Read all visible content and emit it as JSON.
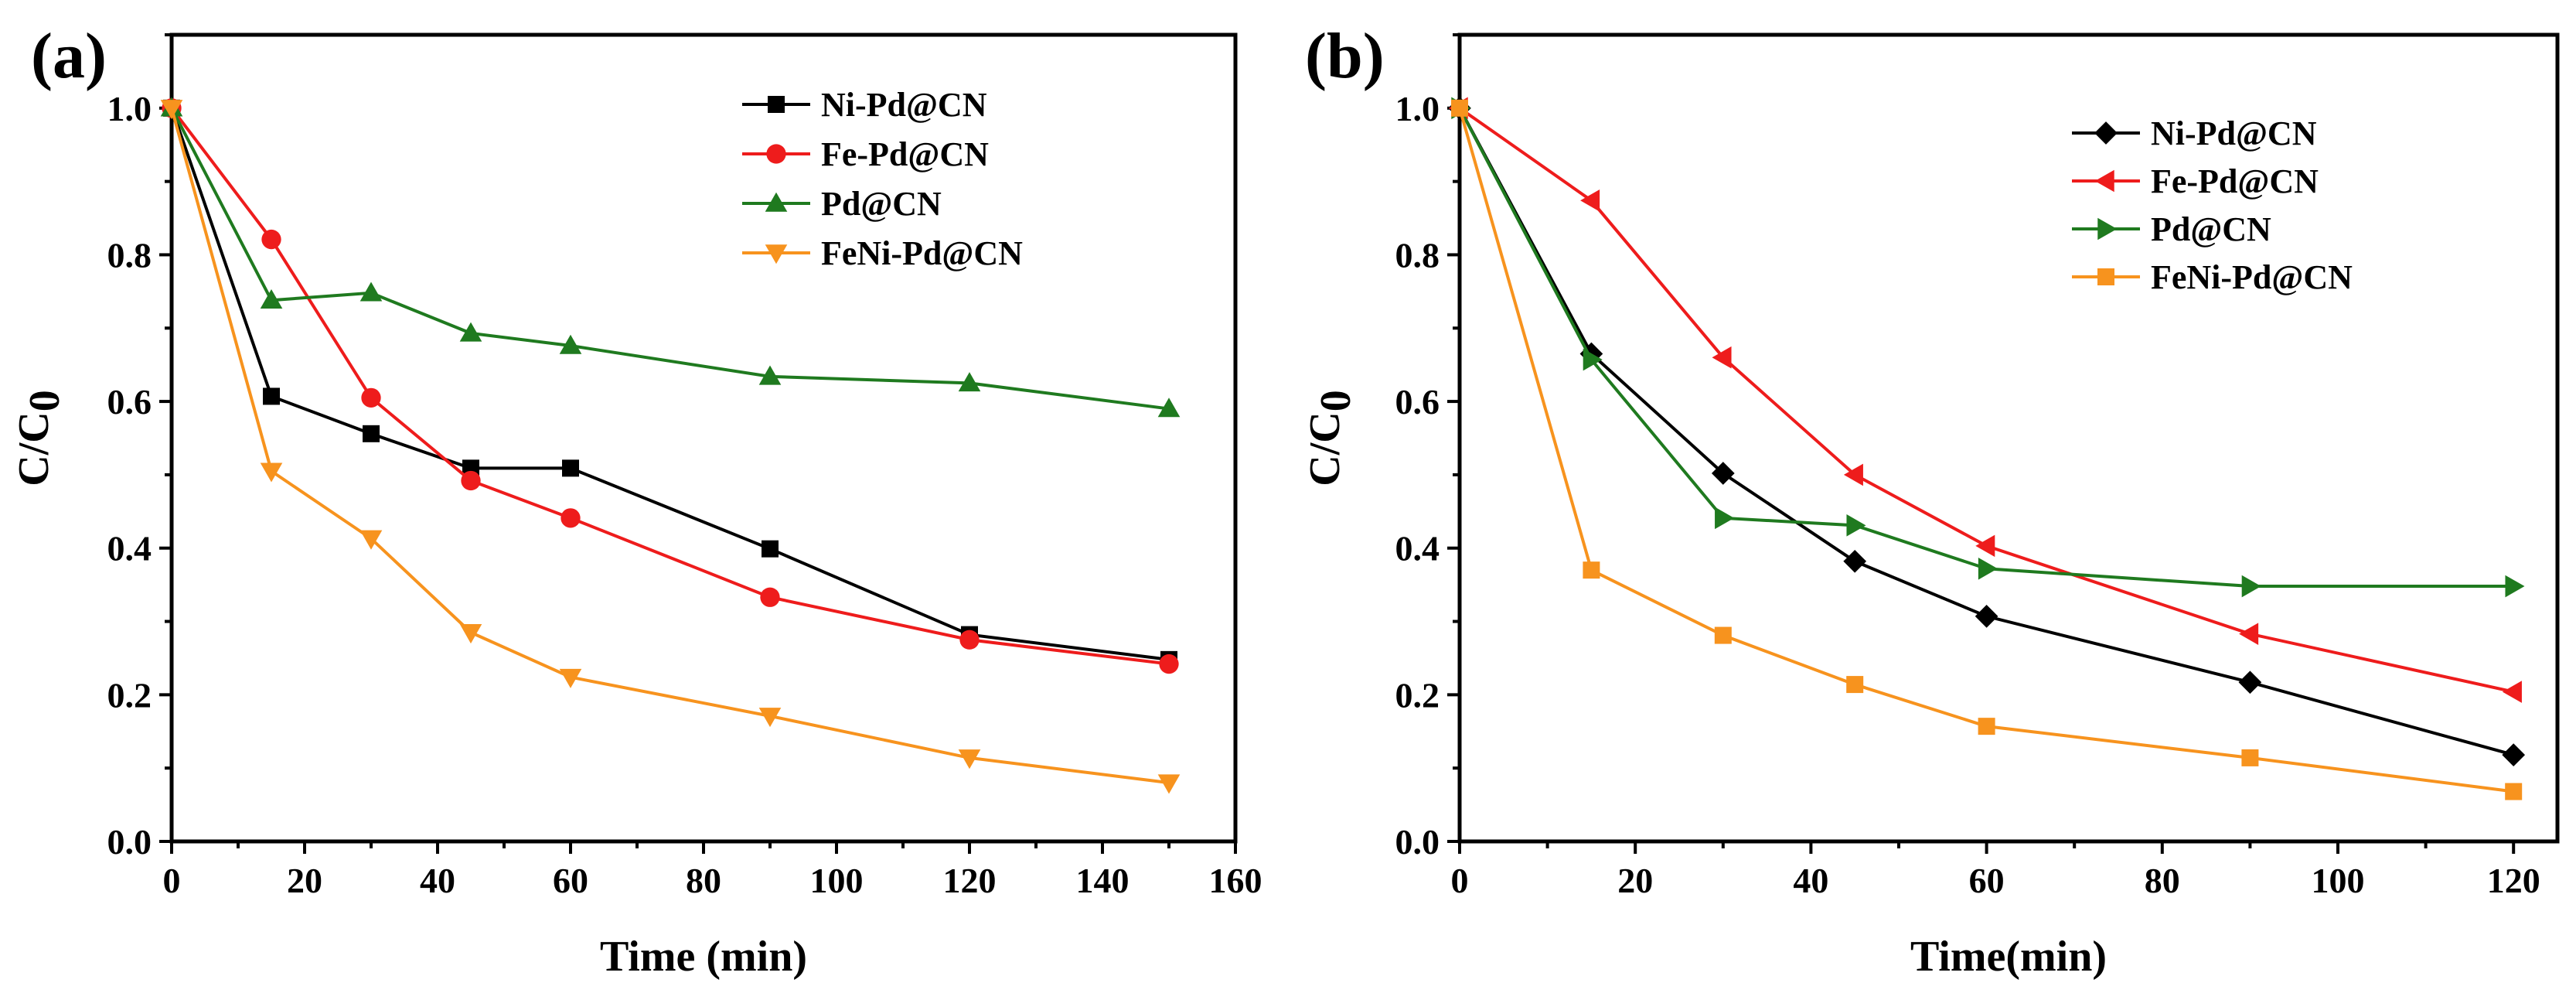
{
  "chart_data": [
    {
      "type": "line",
      "panel_label": "(a)",
      "xlabel": "Time (min)",
      "ylabel_main": "C/C",
      "ylabel_sub": "0",
      "xlim": [
        0,
        160
      ],
      "ylim": [
        0.0,
        1.1
      ],
      "xticks": [
        0,
        20,
        40,
        60,
        80,
        100,
        120,
        140,
        160
      ],
      "xtick_labels": [
        "0",
        "20",
        "40",
        "60",
        "80",
        "100",
        "120",
        "140",
        "160"
      ],
      "yticks": [
        0.0,
        0.2,
        0.4,
        0.6,
        0.8,
        1.0
      ],
      "ytick_labels": [
        "0.0",
        "0.2",
        "0.4",
        "0.6",
        "0.8",
        "1.0"
      ],
      "grid": false,
      "legend_position": "top-right",
      "x": [
        0,
        15,
        30,
        45,
        60,
        90,
        120,
        150
      ],
      "series": [
        {
          "name": "Ni-Pd@CN",
          "color": "#000000",
          "marker": "square",
          "values": [
            1.0,
            0.607,
            0.556,
            0.509,
            0.509,
            0.399,
            0.282,
            0.248
          ]
        },
        {
          "name": "Fe-Pd@CN",
          "color": "#ee1c1c",
          "marker": "circle",
          "values": [
            1.0,
            0.821,
            0.605,
            0.492,
            0.441,
            0.333,
            0.275,
            0.242
          ]
        },
        {
          "name": "Pd@CN",
          "color": "#1f7a1f",
          "marker": "triangle-up",
          "values": [
            1.0,
            0.738,
            0.748,
            0.693,
            0.676,
            0.634,
            0.625,
            0.59
          ]
        },
        {
          "name": "FeNi-Pd@CN",
          "color": "#f7931e",
          "marker": "triangle-down",
          "values": [
            1.0,
            0.505,
            0.413,
            0.285,
            0.224,
            0.171,
            0.114,
            0.08
          ]
        }
      ]
    },
    {
      "type": "line",
      "panel_label": "(b)",
      "xlabel": "Time(min)",
      "ylabel_main": "C/C",
      "ylabel_sub": "0",
      "xlim": [
        0,
        125
      ],
      "ylim": [
        0.0,
        1.1
      ],
      "xticks": [
        0,
        20,
        40,
        60,
        80,
        100,
        120
      ],
      "xtick_labels": [
        "0",
        "20",
        "40",
        "60",
        "80",
        "100",
        "120"
      ],
      "yticks": [
        0.0,
        0.2,
        0.4,
        0.6,
        0.8,
        1.0
      ],
      "ytick_labels": [
        "0.0",
        "0.2",
        "0.4",
        "0.6",
        "0.8",
        "1.0"
      ],
      "grid": false,
      "legend_position": "top-right",
      "x": [
        0,
        15,
        30,
        45,
        60,
        90,
        120
      ],
      "series": [
        {
          "name": "Ni-Pd@CN",
          "color": "#000000",
          "marker": "diamond",
          "values": [
            1.0,
            0.665,
            0.502,
            0.382,
            0.307,
            0.217,
            0.118
          ]
        },
        {
          "name": "Fe-Pd@CN",
          "color": "#ee1c1c",
          "marker": "triangle-left",
          "values": [
            1.0,
            0.874,
            0.66,
            0.5,
            0.403,
            0.283,
            0.204
          ]
        },
        {
          "name": "Pd@CN",
          "color": "#1f7a1f",
          "marker": "triangle-right",
          "values": [
            1.0,
            0.657,
            0.441,
            0.431,
            0.372,
            0.348,
            0.348
          ]
        },
        {
          "name": "FeNi-Pd@CN",
          "color": "#f7931e",
          "marker": "square",
          "values": [
            1.0,
            0.37,
            0.281,
            0.214,
            0.157,
            0.114,
            0.068
          ]
        }
      ]
    }
  ]
}
